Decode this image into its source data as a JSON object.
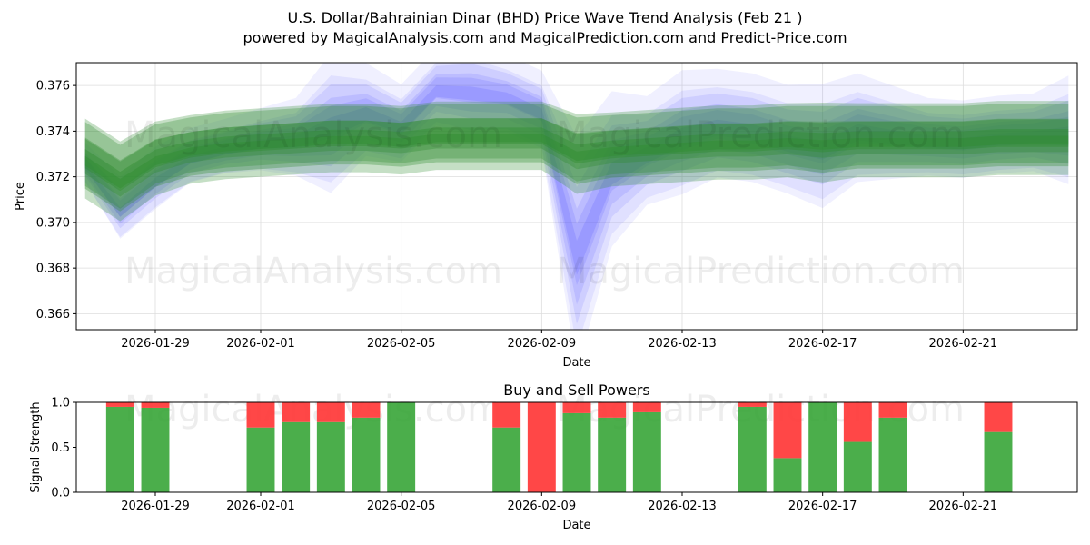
{
  "header": {
    "title": "U.S. Dollar/Bahrainian Dinar (BHD) Price Wave Trend Analysis (Feb 21 )",
    "subtitle": "powered by MagicalAnalysis.com and MagicalPrediction.com and Predict-Price.com"
  },
  "watermarks": [
    "MagicalAnalysis.com",
    "MagicalPrediction.com"
  ],
  "colors": {
    "buy": "#2ca02c",
    "sell": "#ff3333",
    "wave_blue": "#4444ff",
    "wave_green": "#2e8b2e",
    "grid": "#dddddd"
  },
  "chart_data": [
    {
      "type": "area",
      "title": "",
      "xlabel": "Date",
      "ylabel": "Price",
      "xlim": [
        "2026-01-26 18:00",
        "2026-02-24 06:00"
      ],
      "ylim": [
        0.3653,
        0.377
      ],
      "grid": true,
      "x_ticks": [
        "2026-01-29",
        "2026-02-01",
        "2026-02-05",
        "2026-02-09",
        "2026-02-13",
        "2026-02-17",
        "2026-02-21"
      ],
      "y_ticks": [
        "0.366",
        "0.368",
        "0.370",
        "0.372",
        "0.374",
        "0.376"
      ],
      "series": [
        {
          "name": "blue wave band",
          "x": [
            "2026-01-27",
            "2026-01-28",
            "2026-01-29",
            "2026-01-30",
            "2026-01-31",
            "2026-02-01",
            "2026-02-02",
            "2026-02-03",
            "2026-02-04",
            "2026-02-05",
            "2026-02-06",
            "2026-02-07",
            "2026-02-08",
            "2026-02-09",
            "2026-02-10",
            "2026-02-11",
            "2026-02-12",
            "2026-02-13",
            "2026-02-14",
            "2026-02-15",
            "2026-02-16",
            "2026-02-17",
            "2026-02-18",
            "2026-02-19",
            "2026-02-20",
            "2026-02-21",
            "2026-02-22",
            "2026-02-23",
            "2026-02-24"
          ],
          "values": [
            0.3725,
            0.3705,
            0.3718,
            0.3728,
            0.3732,
            0.3735,
            0.3736,
            0.3742,
            0.3748,
            0.3742,
            0.3758,
            0.3757,
            0.3755,
            0.3748,
            0.3685,
            0.3722,
            0.373,
            0.3738,
            0.3742,
            0.374,
            0.3735,
            0.3732,
            0.374,
            0.3738,
            0.3736,
            0.3735,
            0.3737,
            0.3738,
            0.3739
          ],
          "spread": [
            0.0005,
            0.0008,
            0.0008,
            0.0007,
            0.0007,
            0.0008,
            0.001,
            0.0018,
            0.0012,
            0.001,
            0.001,
            0.0012,
            0.001,
            0.001,
            0.003,
            0.002,
            0.0014,
            0.0016,
            0.0014,
            0.0014,
            0.0014,
            0.0016,
            0.0014,
            0.0012,
            0.001,
            0.001,
            0.001,
            0.001,
            0.0014
          ]
        },
        {
          "name": "green wave band",
          "x": [
            "2026-01-27",
            "2026-01-28",
            "2026-01-29",
            "2026-01-30",
            "2026-01-31",
            "2026-02-01",
            "2026-02-02",
            "2026-02-03",
            "2026-02-04",
            "2026-02-05",
            "2026-02-06",
            "2026-02-07",
            "2026-02-08",
            "2026-02-09",
            "2026-02-10",
            "2026-02-11",
            "2026-02-12",
            "2026-02-13",
            "2026-02-14",
            "2026-02-15",
            "2026-02-16",
            "2026-02-17",
            "2026-02-18",
            "2026-02-19",
            "2026-02-20",
            "2026-02-21",
            "2026-02-22",
            "2026-02-23",
            "2026-02-24"
          ],
          "values": [
            0.3728,
            0.3718,
            0.3728,
            0.3732,
            0.3734,
            0.3735,
            0.3736,
            0.3737,
            0.3737,
            0.3736,
            0.3738,
            0.3738,
            0.3738,
            0.3738,
            0.373,
            0.3732,
            0.3733,
            0.3734,
            0.3735,
            0.3735,
            0.3736,
            0.3735,
            0.3736,
            0.3736,
            0.3736,
            0.3736,
            0.3737,
            0.3737,
            0.3737
          ],
          "spread": [
            0.0014,
            0.0014,
            0.0013,
            0.0012,
            0.0012,
            0.0012,
            0.0012,
            0.0012,
            0.0012,
            0.0012,
            0.0012,
            0.0012,
            0.0012,
            0.0012,
            0.0014,
            0.0013,
            0.0013,
            0.0013,
            0.0013,
            0.0013,
            0.0013,
            0.0014,
            0.0013,
            0.0013,
            0.0013,
            0.0013,
            0.0013,
            0.0013,
            0.0013
          ]
        }
      ]
    },
    {
      "type": "bar",
      "title": "Buy and Sell Powers",
      "xlabel": "Date",
      "ylabel": "Signal Strength",
      "xlim": [
        "2026-01-26 18:00",
        "2026-02-24 06:00"
      ],
      "ylim": [
        0,
        1
      ],
      "x_ticks": [
        "2026-01-29",
        "2026-02-01",
        "2026-02-05",
        "2026-02-09",
        "2026-02-13",
        "2026-02-17",
        "2026-02-21"
      ],
      "y_ticks": [
        "0.0",
        "0.5",
        "1.0"
      ],
      "categories": [
        "2026-01-28",
        "2026-01-29",
        "2026-02-01",
        "2026-02-02",
        "2026-02-03",
        "2026-02-04",
        "2026-02-05",
        "2026-02-08",
        "2026-02-09",
        "2026-02-10",
        "2026-02-11",
        "2026-02-12",
        "2026-02-15",
        "2026-02-16",
        "2026-02-17",
        "2026-02-18",
        "2026-02-19",
        "2026-02-22"
      ],
      "series": [
        {
          "name": "Buy",
          "values": [
            0.95,
            0.94,
            0.72,
            0.78,
            0.78,
            0.83,
            1.0,
            0.72,
            0.0,
            0.88,
            0.83,
            0.89,
            0.95,
            0.38,
            1.0,
            0.56,
            0.83,
            0.67
          ]
        },
        {
          "name": "Sell",
          "values": [
            0.05,
            0.06,
            0.28,
            0.22,
            0.22,
            0.17,
            0.0,
            0.28,
            1.0,
            0.12,
            0.17,
            0.11,
            0.05,
            0.62,
            0.0,
            0.44,
            0.17,
            0.33
          ]
        }
      ]
    }
  ]
}
